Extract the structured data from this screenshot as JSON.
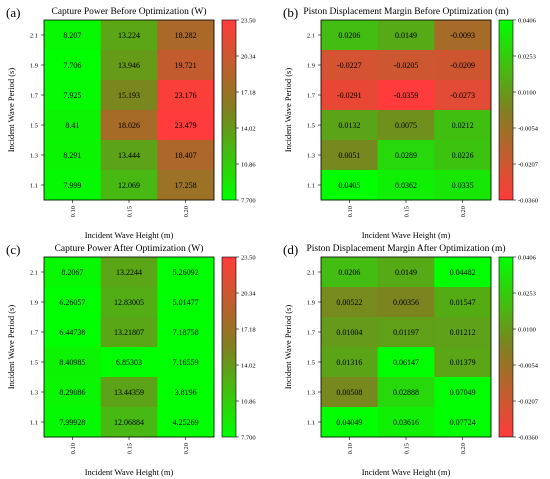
{
  "chart_data": [
    {
      "type": "heatmap",
      "panel_label": "(a)",
      "title": "Capture Power Before Optimization (W)",
      "xlabel": "Incident Wave Height (m)",
      "ylabel": "Incident Wave Period (s)",
      "x": [
        "0.10",
        "0.15",
        "0.20"
      ],
      "y": [
        "2.1",
        "1.9",
        "1.7",
        "1.5",
        "1.3",
        "1.1"
      ],
      "values": [
        [
          "8.207",
          "13.224",
          "18.282"
        ],
        [
          "7.706",
          "13.946",
          "19.721"
        ],
        [
          "7.925",
          "15.193",
          "23.176"
        ],
        [
          "8.41",
          "18.026",
          "23.479"
        ],
        [
          "8.291",
          "13.444",
          "18.407"
        ],
        [
          "7.999",
          "12.069",
          "17.258"
        ]
      ],
      "colorbar": {
        "min": 7.7,
        "max": 23.5,
        "ticks": [
          "23.50",
          "20.34",
          "17.18",
          "14.02",
          "10.86",
          "7.700"
        ],
        "reverse": false
      }
    },
    {
      "type": "heatmap",
      "panel_label": "(b)",
      "title": "Piston Displacement Margin Before Optimization (m)",
      "xlabel": "Incident Wave Height (m)",
      "ylabel": "Incident Wave Period (s)",
      "x": [
        "0.10",
        "0.15",
        "0.20"
      ],
      "y": [
        "2.1",
        "1.9",
        "1.7",
        "1.5",
        "1.3",
        "1.1"
      ],
      "values": [
        [
          "0.0206",
          "0.0149",
          "-0.0093"
        ],
        [
          "-0.0227",
          "-0.0205",
          "-0.0209"
        ],
        [
          "-0.0291",
          "-0.0359",
          "-0.0273"
        ],
        [
          "0.0132",
          "0.0075",
          "0.0212"
        ],
        [
          "0.0051",
          "0.0289",
          "0.0226"
        ],
        [
          "0.0405",
          "0.0362",
          "0.0335"
        ]
      ],
      "colorbar": {
        "min": -0.036,
        "max": 0.0406,
        "ticks": [
          "0.0406",
          "0.0253",
          "0.0100",
          "-0.0054",
          "-0.0207",
          "-0.0360"
        ],
        "reverse": true
      }
    },
    {
      "type": "heatmap",
      "panel_label": "(c)",
      "title": "Capture Power After Optimization (W)",
      "xlabel": "Incident Wave Height (m)",
      "ylabel": "Incident Wave Period (s)",
      "x": [
        "0.10",
        "0.15",
        "0.20"
      ],
      "y": [
        "2.1",
        "1.9",
        "1.7",
        "1.5",
        "1.3",
        "1.1"
      ],
      "values": [
        [
          "8.2067",
          "13.2244",
          "5.26092"
        ],
        [
          "6.26057",
          "12.83005",
          "5.01477"
        ],
        [
          "6.44738",
          "13.21807",
          "7.18758"
        ],
        [
          "8.40985",
          "6.85303",
          "7.16559"
        ],
        [
          "8.29086",
          "13.44359",
          "3.8196"
        ],
        [
          "7.99928",
          "12.06884",
          "4.25269"
        ]
      ],
      "colorbar": {
        "min": 7.7,
        "max": 23.5,
        "ticks": [
          "23.50",
          "20.34",
          "17.18",
          "14.02",
          "10.86",
          "7.700"
        ],
        "reverse": false
      }
    },
    {
      "type": "heatmap",
      "panel_label": "(d)",
      "title": "Piston Displacement Margin After Optimization (m)",
      "xlabel": "Incident Wave Height (m)",
      "ylabel": "Incident Wave Period (s)",
      "x": [
        "0.10",
        "0.15",
        "0.20"
      ],
      "y": [
        "2.1",
        "1.9",
        "1.7",
        "1.5",
        "1.3",
        "1.1"
      ],
      "values": [
        [
          "0.0206",
          "0.0149",
          "0.04482"
        ],
        [
          "0.00522",
          "0.00356",
          "0.01547"
        ],
        [
          "0.01004",
          "0.01197",
          "0.01212"
        ],
        [
          "0.01316",
          "0.06147",
          "0.01379"
        ],
        [
          "0.00508",
          "0.02888",
          "0.07049"
        ],
        [
          "0.04049",
          "0.03616",
          "0.07724"
        ]
      ],
      "colorbar": {
        "min": -0.036,
        "max": 0.0406,
        "ticks": [
          "0.0406",
          "0.0253",
          "0.0100",
          "-0.0054",
          "-0.0207",
          "-0.0360"
        ],
        "reverse": true
      }
    }
  ],
  "colors": {
    "low": "#00ff00",
    "mid": "#808020",
    "high": "#ff3b3b"
  }
}
